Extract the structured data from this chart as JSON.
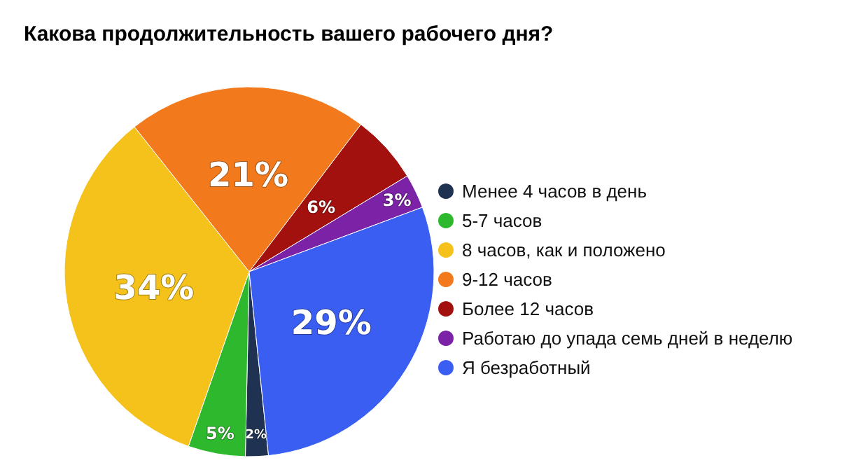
{
  "chart_data": {
    "type": "pie",
    "title": "Какова продолжительность вашего рабочего дня?",
    "categories": [
      "Менее 4 часов в день",
      "5-7 часов",
      "8 часов, как и положено",
      "9-12 часов",
      "Более 12 часов",
      "Работаю до упада семь дней в неделю",
      "Я безработный"
    ],
    "values": [
      2,
      5,
      34,
      21,
      6,
      3,
      29
    ],
    "value_labels": [
      "2%",
      "5%",
      "34%",
      "21%",
      "6%",
      "3%",
      "29%"
    ],
    "colors": [
      "#1f3252",
      "#2eb82e",
      "#f5c21b",
      "#f27a1c",
      "#a3110f",
      "#7b22a6",
      "#3a5ef2"
    ],
    "legend": "right"
  }
}
